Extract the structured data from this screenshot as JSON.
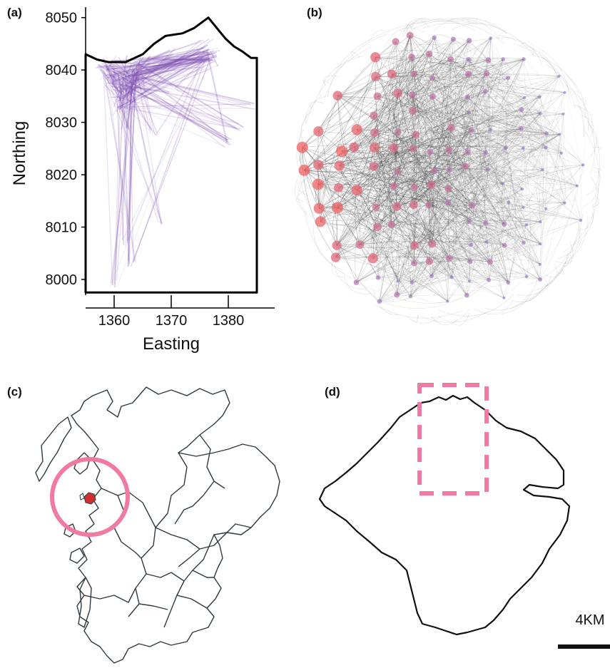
{
  "figure": {
    "panel_labels": [
      "(a)",
      "(b)",
      "(c)",
      "(d)"
    ]
  },
  "chart_data": {
    "type": "scatter",
    "xlabel": "Easting",
    "ylabel": "Northing",
    "x_ticks": [
      1360,
      1370,
      1380
    ],
    "y_ticks": [
      8000,
      8010,
      8020,
      8030,
      8040,
      8050
    ],
    "xlim": [
      1355,
      1385
    ],
    "ylim": [
      7997,
      8052
    ],
    "line_color": "#7d4bb0",
    "boundary": [
      [
        1355,
        8043
      ],
      [
        1357,
        8042
      ],
      [
        1359,
        8041.5
      ],
      [
        1362,
        8041.5
      ],
      [
        1365,
        8043
      ],
      [
        1367,
        8045
      ],
      [
        1369,
        8046.5
      ],
      [
        1372,
        8047
      ],
      [
        1374,
        8048
      ],
      [
        1376.5,
        8050
      ],
      [
        1378,
        8048
      ],
      [
        1379.5,
        8046
      ],
      [
        1381,
        8044.5
      ],
      [
        1382.5,
        8043.5
      ],
      [
        1384,
        8042.3
      ],
      [
        1385,
        8042.3
      ],
      [
        1385,
        7997.5
      ],
      [
        1355,
        7997.5
      ]
    ],
    "hubs": [
      [
        1362,
        8037
      ],
      [
        1361.5,
        8034
      ],
      [
        1363,
        8038
      ],
      [
        1359,
        8040
      ],
      [
        1364,
        8040
      ],
      [
        1376.5,
        8043
      ]
    ],
    "endpoints": [
      [
        1360,
        7999
      ],
      [
        1363,
        8003
      ],
      [
        1362,
        8007
      ],
      [
        1368,
        8011
      ],
      [
        1367,
        8028
      ],
      [
        1362,
        8029
      ],
      [
        1370,
        8036
      ],
      [
        1372,
        8042
      ],
      [
        1378,
        8042
      ],
      [
        1382,
        8029
      ],
      [
        1384,
        8033
      ],
      [
        1380,
        8026
      ],
      [
        1366,
        8042
      ],
      [
        1357,
        8041
      ],
      [
        1370,
        8043.5
      ],
      [
        1375,
        8043
      ],
      [
        1378,
        8043.5
      ]
    ]
  },
  "network": {
    "node_color_high": "#f06060",
    "node_color_low": "#9a86d8",
    "edge_color": "#333333"
  },
  "map_scotland": {
    "marker_color": "#f07aa0",
    "island_color": "#d03030",
    "outline_color": "#2e3a40"
  },
  "map_island": {
    "outline_color": "#111111",
    "inset_color": "#f07aa0",
    "scale_label": "4KM"
  }
}
